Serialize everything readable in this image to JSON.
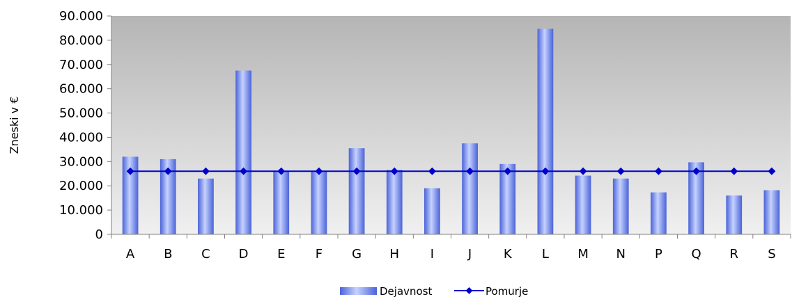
{
  "chart_data": {
    "type": "bar",
    "categories": [
      "A",
      "B",
      "C",
      "D",
      "E",
      "F",
      "G",
      "H",
      "I",
      "J",
      "K",
      "L",
      "M",
      "N",
      "P",
      "Q",
      "R",
      "S"
    ],
    "series": [
      {
        "name": "Dejavnost",
        "type": "bar",
        "values": [
          32000,
          31000,
          23000,
          67500,
          26000,
          26000,
          35500,
          26500,
          19000,
          37500,
          29000,
          84700,
          24200,
          23000,
          17300,
          29700,
          16000,
          18200
        ],
        "color": "#6f86ef"
      },
      {
        "name": "Pomurje",
        "type": "line",
        "values": [
          26000,
          26000,
          26000,
          26000,
          26000,
          26000,
          26000,
          26000,
          26000,
          26000,
          26000,
          26000,
          26000,
          26000,
          26000,
          26000,
          26000,
          26000
        ],
        "color": "#0000cc"
      }
    ],
    "ylabel": "Zneski v €",
    "xlabel": "",
    "ylim": [
      0,
      90000
    ],
    "yticks": [
      "0",
      "10.000",
      "20.000",
      "30.000",
      "40.000",
      "50.000",
      "60.000",
      "70.000",
      "80.000",
      "90.000"
    ],
    "legend_position": "bottom",
    "grid": false
  }
}
